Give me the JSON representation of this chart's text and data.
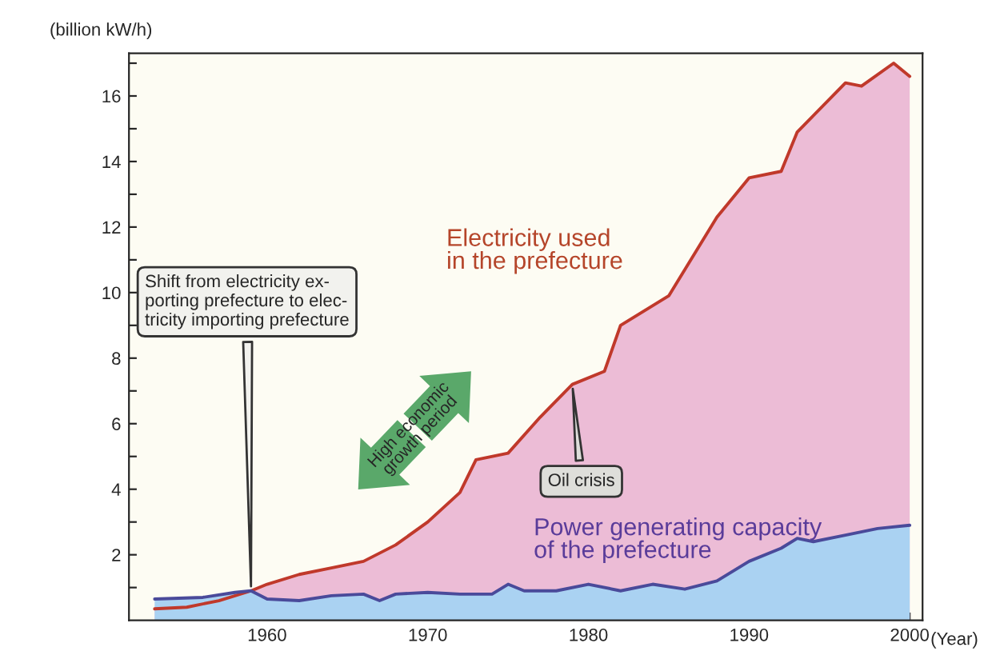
{
  "chart_data": {
    "type": "area",
    "ylabel": "(billion kW/h)",
    "xlabel": "(Year)",
    "xlim": [
      1951.4,
      2000.8
    ],
    "ylim": [
      0,
      17.3
    ],
    "xticks": [
      1960,
      1970,
      1980,
      1990,
      2000
    ],
    "yticks": [
      {
        "value": 1,
        "label": null
      },
      2,
      {
        "value": 3,
        "label": null
      },
      4,
      {
        "value": 5,
        "label": null
      },
      6,
      {
        "value": 7,
        "label": null
      },
      8,
      {
        "value": 9,
        "label": null
      },
      10,
      {
        "value": 11,
        "label": null
      },
      12,
      {
        "value": 13,
        "label": null
      },
      14,
      {
        "value": 15,
        "label": null
      },
      16,
      {
        "value": 17,
        "label": null
      }
    ],
    "grid": false,
    "legend": false,
    "series": [
      {
        "name": "Electricity used in the prefecture",
        "color": "#ecbcd6",
        "x": [
          1953,
          1955,
          1957,
          1959,
          1960,
          1962,
          1964,
          1966,
          1968,
          1970,
          1972,
          1973,
          1975,
          1977,
          1979,
          1981,
          1982,
          1985,
          1988,
          1990,
          1992,
          1993,
          1996,
          1997,
          1999,
          2000
        ],
        "values": [
          0.35,
          0.4,
          0.6,
          0.9,
          1.1,
          1.4,
          1.6,
          1.8,
          2.3,
          3.0,
          3.9,
          4.9,
          5.1,
          6.2,
          7.2,
          7.6,
          9.0,
          9.9,
          12.3,
          13.5,
          13.7,
          14.9,
          16.4,
          16.3,
          17.0,
          16.6
        ]
      },
      {
        "name": "Power generating capacity of the prefecture",
        "color": "#aad2f2",
        "x": [
          1953,
          1956,
          1958,
          1959,
          1960,
          1962,
          1964,
          1966,
          1967,
          1968,
          1970,
          1972,
          1974,
          1975,
          1976,
          1978,
          1980,
          1982,
          1984,
          1986,
          1988,
          1990,
          1992,
          1993,
          1994,
          1996,
          1998,
          2000
        ],
        "values": [
          0.65,
          0.7,
          0.85,
          0.9,
          0.65,
          0.6,
          0.75,
          0.8,
          0.6,
          0.8,
          0.85,
          0.8,
          0.8,
          1.1,
          0.9,
          0.9,
          1.1,
          0.9,
          1.1,
          0.95,
          1.2,
          1.8,
          2.2,
          2.5,
          2.4,
          2.6,
          2.8,
          2.9
        ]
      }
    ],
    "annotations": [
      {
        "text": "Shift from electricity ex-\nporting prefecture to elec-\ntricity importing prefecture",
        "x": 1959,
        "y": 0.9
      },
      {
        "text": "High economic\ngrowth period"
      },
      {
        "text": "Oil crisis",
        "x": 1979,
        "y": 7.2
      }
    ]
  }
}
